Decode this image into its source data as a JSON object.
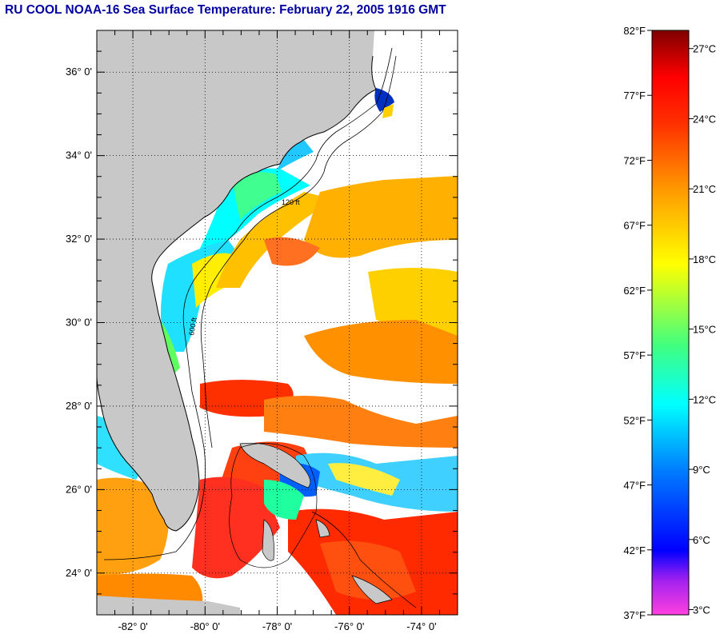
{
  "title": "RU COOL  NOAA-16  Sea Surface Temperature:  February 22, 2005 1916 GMT",
  "map": {
    "lon_range": [
      -83.0,
      -73.0
    ],
    "lat_range": [
      23.0,
      37.0
    ],
    "lat_labels": [
      "24° 0'",
      "26° 0'",
      "28° 0'",
      "30° 0'",
      "32° 0'",
      "34° 0'",
      "36° 0'"
    ],
    "lat_values": [
      24,
      26,
      28,
      30,
      32,
      34,
      36
    ],
    "lon_labels": [
      "-82° 0'",
      "-80° 0'",
      "-78° 0'",
      "-76° 0'",
      "-74° 0'"
    ],
    "lon_values": [
      -82,
      -80,
      -78,
      -76,
      -74
    ],
    "land_color": "#c8c8c8",
    "cloud_color": "#ffffff",
    "grid": "dotted",
    "isobath_labels": [
      "120 ft",
      "600 ft"
    ]
  },
  "colorbar": {
    "fahrenheit_labels": [
      "82°F",
      "77°F",
      "72°F",
      "67°F",
      "62°F",
      "57°F",
      "52°F",
      "47°F",
      "42°F",
      "37°F"
    ],
    "fahrenheit_values": [
      82,
      77,
      72,
      67,
      62,
      57,
      52,
      47,
      42,
      37
    ],
    "celsius_labels": [
      "27°C",
      "24°C",
      "21°C",
      "18°C",
      "15°C",
      "12°C",
      "9°C",
      "6°C",
      "3°C"
    ],
    "celsius_values": [
      27,
      24,
      21,
      18,
      15,
      12,
      9,
      6,
      3
    ],
    "stops": [
      "#ff40e0",
      "#6020c0",
      "#0000ff",
      "#00a0ff",
      "#00ffff",
      "#40ff80",
      "#ffff00",
      "#ffa000",
      "#ff4000",
      "#ff0000",
      "#800000"
    ]
  }
}
